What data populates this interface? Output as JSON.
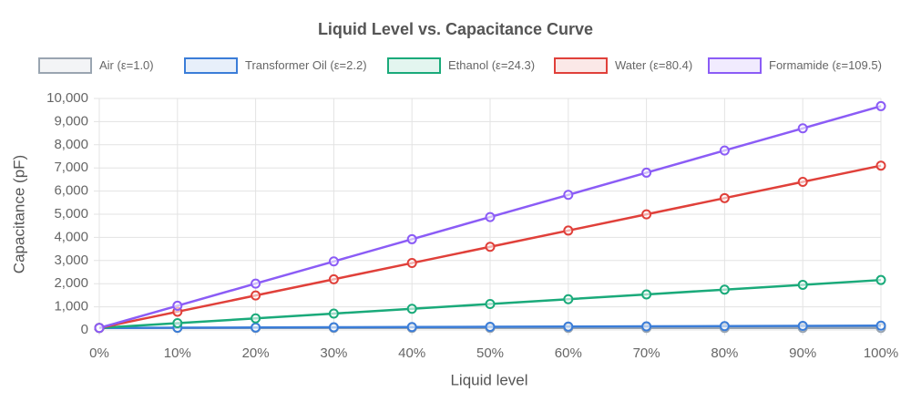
{
  "chart_data": {
    "type": "line",
    "title": "Liquid Level vs. Capacitance Curve",
    "x_label": "Liquid level",
    "y_label": "Capacitance (pF)",
    "categories": [
      "0%",
      "10%",
      "20%",
      "30%",
      "40%",
      "50%",
      "60%",
      "70%",
      "80%",
      "90%",
      "100%"
    ],
    "series": [
      {
        "name": "Air (ε=1.0)",
        "color": "#9aa5b1",
        "values": [
          88,
          88,
          88,
          88,
          88,
          88,
          88,
          88,
          88,
          88,
          88
        ]
      },
      {
        "name": "Transformer Oil (ε=2.2)",
        "color": "#3b7dd8",
        "values": [
          88,
          98,
          108,
          118,
          128,
          138,
          148,
          158,
          168,
          178,
          188
        ]
      },
      {
        "name": "Ethanol (ε=24.3)",
        "color": "#1aaa7a",
        "values": [
          88,
          295,
          502,
          709,
          916,
          1123,
          1330,
          1537,
          1744,
          1951,
          2158
        ]
      },
      {
        "name": "Water (ε=80.4)",
        "color": "#e0403a",
        "values": [
          88,
          789,
          1490,
          2191,
          2892,
          3593,
          4294,
          4995,
          5696,
          6397,
          7098
        ]
      },
      {
        "name": "Formamide (ε=109.5)",
        "color": "#8b5cf6",
        "values": [
          88,
          1046,
          2004,
          2962,
          3920,
          4878,
          5836,
          6794,
          7752,
          8710,
          9668
        ]
      }
    ],
    "ylim": [
      0,
      10000
    ],
    "yticks": [
      0,
      {
        "value": 1000,
        "label": "1,000"
      },
      {
        "value": 2000,
        "label": "2,000"
      },
      {
        "value": 3000,
        "label": "3,000"
      },
      {
        "value": 4000,
        "label": "4,000"
      },
      {
        "value": 5000,
        "label": "5,000"
      },
      {
        "value": 6000,
        "label": "6,000"
      },
      {
        "value": 7000,
        "label": "7,000"
      },
      {
        "value": 8000,
        "label": "8,000"
      },
      {
        "value": 9000,
        "label": "9,000"
      },
      {
        "value": 10000,
        "label": "10,000"
      }
    ],
    "grid": true
  }
}
